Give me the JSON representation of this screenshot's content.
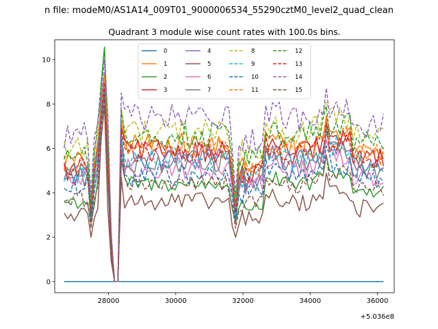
{
  "figure": {
    "suptitle": "n file: modeM0/AS1A14_009T01_9000006534_55290cztM0_level2_quad_clean",
    "title": "Quadrant 3 module wise count rates with 100.0s bins.",
    "x_offset_label": "+5.036e8"
  },
  "chart_data": {
    "type": "line",
    "title": "Quadrant 3 module wise count rates with 100.0s bins.",
    "xlabel": "",
    "ylabel": "",
    "x_offset": 503600000,
    "xlim": [
      26400,
      36500
    ],
    "ylim": [
      -0.5,
      10.9
    ],
    "xticks": [
      28000,
      30000,
      32000,
      34000,
      36000
    ],
    "xtick_labels": [
      "28000",
      "30000",
      "32000",
      "34000",
      "36000"
    ],
    "yticks": [
      0,
      2,
      4,
      6,
      8,
      10
    ],
    "ytick_labels": [
      "0",
      "2",
      "4",
      "6",
      "8",
      "10"
    ],
    "x_start": 26680,
    "x_step": 100,
    "legend": {
      "placement": "top-center",
      "columns": 4
    },
    "series": [
      {
        "name": "0",
        "color": "#1f77b4",
        "dash": "solid",
        "base": 0.0,
        "gap": 0.0,
        "spike": 0.0,
        "drop": 0.0,
        "noise": 0.0,
        "flat": true
      },
      {
        "name": "1",
        "color": "#ff7f0e",
        "dash": "solid",
        "base": 6.2,
        "gap": 5.0,
        "spike": 8.9,
        "drop": 2.6,
        "noise": 0.25
      },
      {
        "name": "2",
        "color": "#2ca02c",
        "dash": "solid",
        "base": 4.4,
        "gap": 3.2,
        "spike": 10.3,
        "drop": 2.7,
        "noise": 0.18
      },
      {
        "name": "3",
        "color": "#d62728",
        "dash": "solid",
        "base": 5.9,
        "gap": 4.6,
        "spike": 8.5,
        "drop": 2.9,
        "noise": 0.25
      },
      {
        "name": "4",
        "color": "#9467bd",
        "dash": "solid",
        "base": 5.5,
        "gap": 4.5,
        "spike": 9.4,
        "drop": 3.1,
        "noise": 0.25
      },
      {
        "name": "5",
        "color": "#8c564b",
        "dash": "solid",
        "base": 3.6,
        "gap": 2.6,
        "spike": 7.9,
        "drop": 2.0,
        "noise": 0.2
      },
      {
        "name": "6",
        "color": "#e377c2",
        "dash": "solid",
        "base": 5.1,
        "gap": 4.1,
        "spike": 8.7,
        "drop": 2.8,
        "noise": 0.25
      },
      {
        "name": "7",
        "color": "#7f7f7f",
        "dash": "solid",
        "base": 5.4,
        "gap": 4.3,
        "spike": 8.6,
        "drop": 2.9,
        "noise": 0.25
      },
      {
        "name": "8",
        "color": "#bcbd22",
        "dash": "dashed",
        "base": 6.8,
        "gap": 5.6,
        "spike": 9.2,
        "drop": 3.4,
        "noise": 0.3
      },
      {
        "name": "9",
        "color": "#17becf",
        "dash": "dashed",
        "base": 5.6,
        "gap": 4.5,
        "spike": 8.9,
        "drop": 3.0,
        "noise": 0.25
      },
      {
        "name": "10",
        "color": "#1f77b4",
        "dash": "dashed",
        "base": 4.8,
        "gap": 3.8,
        "spike": 8.4,
        "drop": 2.7,
        "noise": 0.25
      },
      {
        "name": "11",
        "color": "#ff7f0e",
        "dash": "dashed",
        "base": 6.0,
        "gap": 4.9,
        "spike": 9.1,
        "drop": 3.2,
        "noise": 0.25
      },
      {
        "name": "12",
        "color": "#2ca02c",
        "dash": "dashed",
        "base": 6.6,
        "gap": 5.4,
        "spike": 10.4,
        "drop": 3.5,
        "noise": 0.3
      },
      {
        "name": "13",
        "color": "#d62728",
        "dash": "dashed",
        "base": 5.8,
        "gap": 4.7,
        "spike": 8.8,
        "drop": 3.1,
        "noise": 0.25
      },
      {
        "name": "14",
        "color": "#9467bd",
        "dash": "dashed",
        "base": 7.4,
        "gap": 6.2,
        "spike": 9.8,
        "drop": 3.9,
        "noise": 0.3
      },
      {
        "name": "15",
        "color": "#8c564b",
        "dash": "dashed",
        "base": 4.4,
        "gap": 3.3,
        "spike": 8.1,
        "drop": 2.4,
        "noise": 0.2
      }
    ]
  }
}
